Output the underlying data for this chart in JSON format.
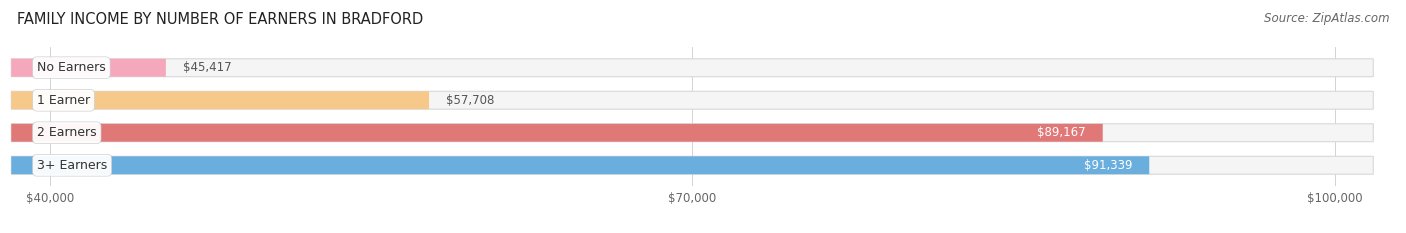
{
  "title": "FAMILY INCOME BY NUMBER OF EARNERS IN BRADFORD",
  "source": "Source: ZipAtlas.com",
  "categories": [
    "No Earners",
    "1 Earner",
    "2 Earners",
    "3+ Earners"
  ],
  "values": [
    45417,
    57708,
    89167,
    91339
  ],
  "bar_colors": [
    "#f5a8bc",
    "#f6c98a",
    "#e07878",
    "#6aaede"
  ],
  "label_values": [
    "$45,417",
    "$57,708",
    "$89,167",
    "$91,339"
  ],
  "xmin": 40000,
  "xmax": 100000,
  "xticks": [
    40000,
    70000,
    100000
  ],
  "xtick_labels": [
    "$40,000",
    "$70,000",
    "$100,000"
  ],
  "bg_color": "#ffffff",
  "track_color": "#f5f5f5",
  "track_edge_color": "#d8d8d8",
  "title_fontsize": 10.5,
  "source_fontsize": 8.5,
  "label_fontsize": 9,
  "value_fontsize": 8.5,
  "value_inside_threshold": 75000
}
